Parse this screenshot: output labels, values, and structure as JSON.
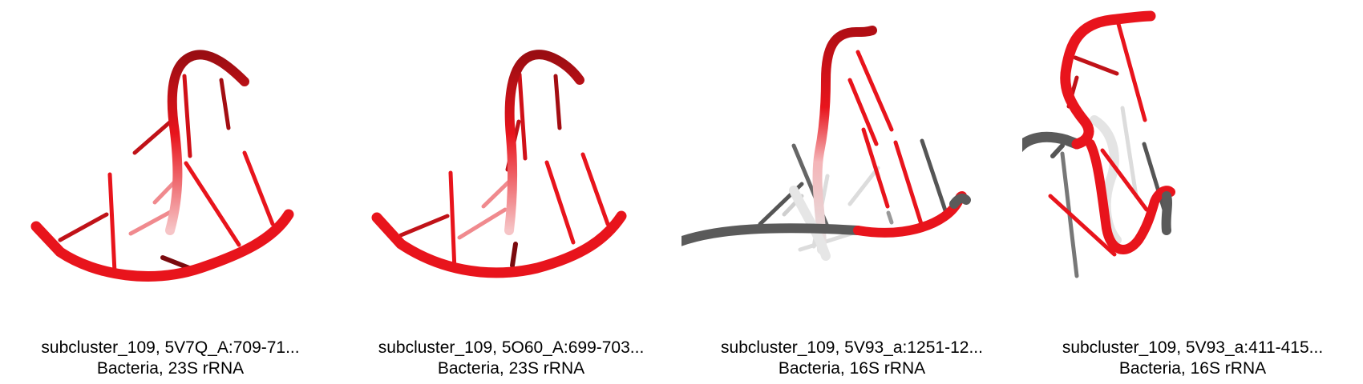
{
  "panels": [
    {
      "title": "subcluster_109, 5V7Q_A:709-71...",
      "subtitle": "Bacteria, 23S rRNA"
    },
    {
      "title": "subcluster_109, 5O60_A:699-703...",
      "subtitle": "Bacteria, 23S rRNA"
    },
    {
      "title": "subcluster_109, 5V93_a:1251-12...",
      "subtitle": "Bacteria, 16S rRNA"
    },
    {
      "title": "subcluster_109, 5V93_a:411-415...",
      "subtitle": "Bacteria, 16S rRNA"
    }
  ],
  "colors": {
    "highlight": "#e8141c",
    "dark_red": "#8a0a10",
    "backbone_gray": "#5a5a5a",
    "light_gray": "#d2d2d2"
  }
}
